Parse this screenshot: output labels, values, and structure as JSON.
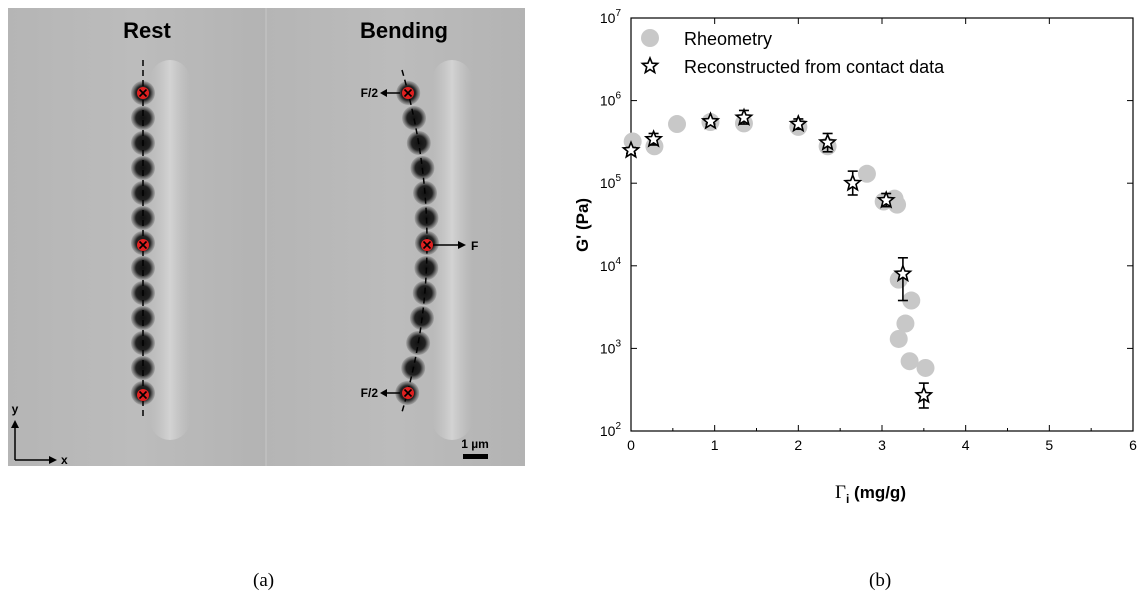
{
  "panel_a": {
    "left_title": "Rest",
    "right_title": "Bending",
    "force_top": "F/2",
    "force_middle": "F",
    "force_bottom": "F/2",
    "scale_bar": "1 µm",
    "axis_y": "y",
    "axis_x": "x",
    "caption": "(a)"
  },
  "panel_b": {
    "caption": "(b)"
  },
  "chart_data": {
    "type": "scatter",
    "xlabel_main": "Γ",
    "xlabel_sub": "i",
    "xlabel_rest": " (mg/g)",
    "ylabel": "G' (Pa)",
    "xlim": [
      0,
      6
    ],
    "ylim": [
      100,
      10000000
    ],
    "y_scale": "log",
    "x_ticks": [
      "0",
      "1",
      "2",
      "3",
      "4",
      "5",
      "6"
    ],
    "y_ticks": [
      {
        "base": "10",
        "exp": "2",
        "value": 100
      },
      {
        "base": "10",
        "exp": "3",
        "value": 1000
      },
      {
        "base": "10",
        "exp": "4",
        "value": 10000
      },
      {
        "base": "10",
        "exp": "5",
        "value": 100000
      },
      {
        "base": "10",
        "exp": "6",
        "value": 1000000
      },
      {
        "base": "10",
        "exp": "7",
        "value": 10000000
      }
    ],
    "legend_position": "top-left",
    "series": [
      {
        "name": "Rheometry",
        "marker": "circle",
        "color": "#c8c8c8",
        "points": [
          {
            "x": 0.02,
            "y": 320000
          },
          {
            "x": 0.28,
            "y": 280000
          },
          {
            "x": 0.55,
            "y": 520000
          },
          {
            "x": 0.95,
            "y": 550000
          },
          {
            "x": 1.35,
            "y": 530000
          },
          {
            "x": 2.0,
            "y": 480000
          },
          {
            "x": 2.35,
            "y": 280000
          },
          {
            "x": 2.82,
            "y": 130000
          },
          {
            "x": 3.02,
            "y": 60000
          },
          {
            "x": 3.15,
            "y": 65000
          },
          {
            "x": 3.18,
            "y": 55000
          },
          {
            "x": 3.2,
            "y": 6800
          },
          {
            "x": 3.35,
            "y": 3800
          },
          {
            "x": 3.28,
            "y": 2000
          },
          {
            "x": 3.2,
            "y": 1300
          },
          {
            "x": 3.33,
            "y": 700
          },
          {
            "x": 3.52,
            "y": 580
          }
        ]
      },
      {
        "name": "Reconstructed from contact data",
        "marker": "star",
        "color": "#000000",
        "points": [
          {
            "x": 0.0,
            "y": 250000,
            "err_lo": 230000,
            "err_hi": 270000
          },
          {
            "x": 0.27,
            "y": 340000,
            "err_lo": 290000,
            "err_hi": 400000
          },
          {
            "x": 0.95,
            "y": 560000,
            "err_lo": 520000,
            "err_hi": 600000
          },
          {
            "x": 1.35,
            "y": 620000,
            "err_lo": 520000,
            "err_hi": 760000
          },
          {
            "x": 2.0,
            "y": 520000,
            "err_lo": 450000,
            "err_hi": 600000
          },
          {
            "x": 2.35,
            "y": 310000,
            "err_lo": 240000,
            "err_hi": 400000
          },
          {
            "x": 2.65,
            "y": 100000,
            "err_lo": 72000,
            "err_hi": 140000
          },
          {
            "x": 3.05,
            "y": 62000,
            "err_lo": 52000,
            "err_hi": 75000
          },
          {
            "x": 3.25,
            "y": 8000,
            "err_lo": 3800,
            "err_hi": 12500
          },
          {
            "x": 3.5,
            "y": 270,
            "err_lo": 190,
            "err_hi": 380
          }
        ]
      }
    ]
  }
}
